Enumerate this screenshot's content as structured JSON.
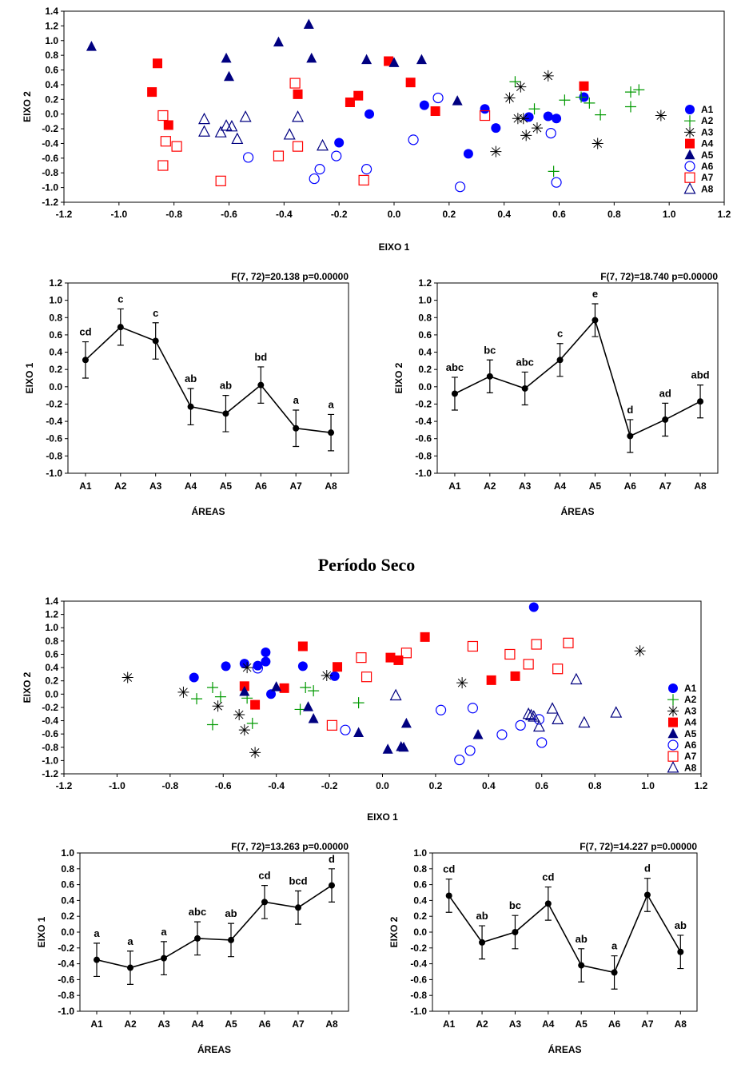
{
  "section_title": "Período Seco",
  "colors": {
    "A1": "#0000ff",
    "A2": "#009900",
    "A3": "#000000",
    "A4": "#ff0000",
    "A5": "#000080",
    "A6": "#0000ff",
    "A7": "#ff0000",
    "A8": "#000080",
    "line": "#000000"
  },
  "markers": {
    "A1": "filled-circle",
    "A2": "plus",
    "A3": "asterisk",
    "A4": "filled-square",
    "A5": "filled-triangle",
    "A6": "open-circle",
    "A7": "open-square",
    "A8": "open-triangle"
  },
  "chart_data": [
    {
      "id": "scatter-top",
      "type": "scatter",
      "xlabel": "EIXO 1",
      "ylabel": "EIXO 2",
      "xlim": [
        -1.2,
        1.2
      ],
      "ylim": [
        -1.2,
        1.4
      ],
      "xticks": [
        "-1.2",
        "-1.0",
        "-0.8",
        "-0.6",
        "-0.4",
        "-0.2",
        "0.0",
        "0.2",
        "0.4",
        "0.6",
        "0.8",
        "1.0",
        "1.2"
      ],
      "yticks": [
        "1.4",
        "1.2",
        "1.0",
        "0.8",
        "0.6",
        "0.4",
        "0.2",
        "0.0",
        "-0.2",
        "-0.4",
        "-0.6",
        "-0.8",
        "-1.0",
        "-1.2"
      ],
      "legend": "right",
      "series": [
        {
          "name": "A1",
          "points": [
            [
              -0.2,
              -0.39
            ],
            [
              -0.09,
              0.0
            ],
            [
              0.11,
              0.12
            ],
            [
              0.27,
              -0.54
            ],
            [
              0.33,
              0.07
            ],
            [
              0.37,
              -0.19
            ],
            [
              0.49,
              -0.04
            ],
            [
              0.56,
              -0.03
            ],
            [
              0.59,
              -0.06
            ],
            [
              0.69,
              0.23
            ]
          ]
        },
        {
          "name": "A2",
          "points": [
            [
              0.44,
              0.44
            ],
            [
              0.51,
              0.07
            ],
            [
              0.58,
              -0.78
            ],
            [
              0.62,
              0.19
            ],
            [
              0.68,
              0.23
            ],
            [
              0.71,
              0.15
            ],
            [
              0.75,
              -0.01
            ],
            [
              0.86,
              0.1
            ],
            [
              0.86,
              0.3
            ],
            [
              0.89,
              0.33
            ]
          ]
        },
        {
          "name": "A3",
          "points": [
            [
              0.37,
              -0.51
            ],
            [
              0.42,
              0.22
            ],
            [
              0.45,
              -0.06
            ],
            [
              0.46,
              0.37
            ],
            [
              0.47,
              -0.06
            ],
            [
              0.48,
              -0.29
            ],
            [
              0.52,
              -0.19
            ],
            [
              0.56,
              0.52
            ],
            [
              0.74,
              -0.4
            ],
            [
              0.97,
              -0.02
            ]
          ]
        },
        {
          "name": "A4",
          "points": [
            [
              -0.88,
              0.3
            ],
            [
              -0.86,
              0.69
            ],
            [
              -0.82,
              -0.15
            ],
            [
              -0.35,
              0.27
            ],
            [
              -0.16,
              0.16
            ],
            [
              -0.13,
              0.25
            ],
            [
              -0.02,
              0.72
            ],
            [
              0.06,
              0.43
            ],
            [
              0.15,
              0.04
            ],
            [
              0.69,
              0.38
            ]
          ]
        },
        {
          "name": "A5",
          "points": [
            [
              -1.1,
              0.92
            ],
            [
              -0.61,
              0.76
            ],
            [
              -0.6,
              0.51
            ],
            [
              -0.42,
              0.98
            ],
            [
              -0.31,
              1.22
            ],
            [
              -0.3,
              0.76
            ],
            [
              -0.1,
              0.74
            ],
            [
              0.0,
              0.7
            ],
            [
              0.1,
              0.74
            ],
            [
              0.23,
              0.18
            ]
          ]
        },
        {
          "name": "A6",
          "points": [
            [
              -0.53,
              -0.59
            ],
            [
              -0.29,
              -0.88
            ],
            [
              -0.27,
              -0.75
            ],
            [
              -0.21,
              -0.57
            ],
            [
              -0.1,
              -0.75
            ],
            [
              0.07,
              -0.35
            ],
            [
              0.16,
              0.22
            ],
            [
              0.24,
              -0.99
            ],
            [
              0.57,
              -0.26
            ],
            [
              0.59,
              -0.93
            ]
          ]
        },
        {
          "name": "A7",
          "points": [
            [
              -0.84,
              -0.02
            ],
            [
              -0.84,
              -0.7
            ],
            [
              -0.83,
              -0.37
            ],
            [
              -0.79,
              -0.44
            ],
            [
              -0.63,
              -0.91
            ],
            [
              -0.42,
              -0.57
            ],
            [
              -0.36,
              0.42
            ],
            [
              -0.35,
              -0.44
            ],
            [
              -0.11,
              -0.9
            ],
            [
              0.33,
              -0.02
            ]
          ]
        },
        {
          "name": "A8",
          "points": [
            [
              -0.69,
              -0.07
            ],
            [
              -0.69,
              -0.24
            ],
            [
              -0.63,
              -0.25
            ],
            [
              -0.61,
              -0.16
            ],
            [
              -0.59,
              -0.17
            ],
            [
              -0.57,
              -0.34
            ],
            [
              -0.54,
              -0.04
            ],
            [
              -0.38,
              -0.28
            ],
            [
              -0.35,
              -0.04
            ],
            [
              -0.26,
              -0.43
            ]
          ]
        }
      ]
    },
    {
      "id": "means-top-eixo1",
      "type": "line",
      "annotation": "F(7, 72)=20.138  p=0.00000",
      "xlabel": "ÁREAS",
      "ylabel": "EIXO 1",
      "categories": [
        "A1",
        "A2",
        "A3",
        "A4",
        "A5",
        "A6",
        "A7",
        "A8"
      ],
      "yticks": [
        "1.2",
        "1.0",
        "0.8",
        "0.6",
        "0.4",
        "0.2",
        "0.0",
        "-0.2",
        "-0.4",
        "-0.6",
        "-0.8",
        "-1.0"
      ],
      "ylim": [
        -1.0,
        1.2
      ],
      "means": [
        0.31,
        0.69,
        0.53,
        -0.23,
        -0.31,
        0.02,
        -0.48,
        -0.53
      ],
      "errors": [
        0.21,
        0.21,
        0.21,
        0.21,
        0.21,
        0.21,
        0.21,
        0.21
      ],
      "groups": [
        "cd",
        "c",
        "c",
        "ab",
        "ab",
        "bd",
        "a",
        "a"
      ]
    },
    {
      "id": "means-top-eixo2",
      "type": "line",
      "annotation": "F(7, 72)=18.740  p=0.00000",
      "xlabel": "ÁREAS",
      "ylabel": "EIXO 2",
      "categories": [
        "A1",
        "A2",
        "A3",
        "A4",
        "A5",
        "A6",
        "A7",
        "A8"
      ],
      "yticks": [
        "1.2",
        "1.0",
        "0.8",
        "0.6",
        "0.4",
        "0.2",
        "0.0",
        "-0.2",
        "-0.4",
        "-0.6",
        "-0.8",
        "-1.0"
      ],
      "ylim": [
        -1.0,
        1.2
      ],
      "means": [
        -0.08,
        0.12,
        -0.02,
        0.31,
        0.77,
        -0.57,
        -0.38,
        -0.17
      ],
      "errors": [
        0.19,
        0.19,
        0.19,
        0.19,
        0.19,
        0.19,
        0.19,
        0.19
      ],
      "groups": [
        "abc",
        "bc",
        "abc",
        "c",
        "e",
        "d",
        "ad",
        "abd"
      ]
    },
    {
      "id": "scatter-bottom",
      "type": "scatter",
      "xlabel": "EIXO 1",
      "ylabel": "EIXO 2",
      "xlim": [
        -1.2,
        1.2
      ],
      "ylim": [
        -1.2,
        1.4
      ],
      "xticks": [
        "-1.2",
        "-1.0",
        "-0.8",
        "-0.6",
        "-0.4",
        "-0.2",
        "0.0",
        "0.2",
        "0.4",
        "0.6",
        "0.8",
        "1.0",
        "1.2"
      ],
      "yticks": [
        "1.4",
        "1.2",
        "1.0",
        "0.8",
        "0.6",
        "0.4",
        "0.2",
        "0.0",
        "-0.2",
        "-0.4",
        "-0.6",
        "-0.8",
        "-1.0",
        "-1.2"
      ],
      "legend": "right",
      "series": [
        {
          "name": "A1",
          "points": [
            [
              -0.71,
              0.25
            ],
            [
              -0.59,
              0.42
            ],
            [
              -0.52,
              0.46
            ],
            [
              -0.47,
              0.43
            ],
            [
              -0.44,
              0.63
            ],
            [
              -0.44,
              0.49
            ],
            [
              -0.42,
              0.0
            ],
            [
              -0.3,
              0.42
            ],
            [
              -0.18,
              0.27
            ],
            [
              0.57,
              1.31
            ]
          ]
        },
        {
          "name": "A2",
          "points": [
            [
              -0.7,
              -0.07
            ],
            [
              -0.64,
              0.1
            ],
            [
              -0.61,
              -0.04
            ],
            [
              -0.64,
              -0.46
            ],
            [
              -0.51,
              -0.06
            ],
            [
              -0.49,
              -0.44
            ],
            [
              -0.31,
              -0.23
            ],
            [
              -0.26,
              0.05
            ],
            [
              -0.09,
              -0.13
            ],
            [
              -0.29,
              0.1
            ]
          ]
        },
        {
          "name": "A3",
          "points": [
            [
              -0.96,
              0.25
            ],
            [
              -0.75,
              0.03
            ],
            [
              -0.62,
              -0.18
            ],
            [
              -0.54,
              -0.31
            ],
            [
              -0.52,
              -0.54
            ],
            [
              -0.48,
              -0.88
            ],
            [
              -0.21,
              0.28
            ],
            [
              -0.51,
              0.4
            ],
            [
              0.3,
              0.17
            ],
            [
              0.97,
              0.65
            ]
          ]
        },
        {
          "name": "A4",
          "points": [
            [
              -0.52,
              0.12
            ],
            [
              -0.48,
              -0.16
            ],
            [
              -0.37,
              0.09
            ],
            [
              -0.3,
              0.72
            ],
            [
              -0.17,
              0.41
            ],
            [
              0.03,
              0.55
            ],
            [
              0.06,
              0.51
            ],
            [
              0.16,
              0.86
            ],
            [
              0.41,
              0.21
            ],
            [
              0.5,
              0.27
            ]
          ]
        },
        {
          "name": "A5",
          "points": [
            [
              -0.52,
              0.04
            ],
            [
              -0.4,
              0.11
            ],
            [
              -0.28,
              -0.19
            ],
            [
              -0.26,
              -0.37
            ],
            [
              -0.09,
              -0.58
            ],
            [
              0.02,
              -0.83
            ],
            [
              0.07,
              -0.79
            ],
            [
              0.08,
              -0.8
            ],
            [
              0.09,
              -0.44
            ],
            [
              0.36,
              -0.61
            ]
          ]
        },
        {
          "name": "A6",
          "points": [
            [
              -0.47,
              0.39
            ],
            [
              -0.14,
              -0.54
            ],
            [
              0.22,
              -0.24
            ],
            [
              0.29,
              -0.99
            ],
            [
              0.33,
              -0.85
            ],
            [
              0.34,
              -0.21
            ],
            [
              0.45,
              -0.61
            ],
            [
              0.52,
              -0.47
            ],
            [
              0.59,
              -0.38
            ],
            [
              0.6,
              -0.73
            ]
          ]
        },
        {
          "name": "A7",
          "points": [
            [
              -0.19,
              -0.47
            ],
            [
              -0.08,
              0.55
            ],
            [
              -0.06,
              0.26
            ],
            [
              0.09,
              0.62
            ],
            [
              0.34,
              0.72
            ],
            [
              0.48,
              0.6
            ],
            [
              0.55,
              0.45
            ],
            [
              0.58,
              0.75
            ],
            [
              0.66,
              0.38
            ],
            [
              0.7,
              0.77
            ]
          ]
        },
        {
          "name": "A8",
          "points": [
            [
              0.05,
              -0.02
            ],
            [
              0.55,
              -0.3
            ],
            [
              0.56,
              -0.32
            ],
            [
              0.59,
              -0.49
            ],
            [
              0.64,
              -0.22
            ],
            [
              0.66,
              -0.38
            ],
            [
              0.73,
              0.22
            ],
            [
              0.76,
              -0.43
            ],
            [
              0.88,
              -0.28
            ],
            [
              0.57,
              -0.34
            ]
          ]
        }
      ]
    },
    {
      "id": "means-bottom-eixo1",
      "type": "line",
      "annotation": "F(7, 72)=13.263  p=0.00000",
      "xlabel": "ÁREAS",
      "ylabel": "EIXO 1",
      "categories": [
        "A1",
        "A2",
        "A3",
        "A4",
        "A5",
        "A6",
        "A7",
        "A8"
      ],
      "yticks": [
        "1.0",
        "0.8",
        "0.6",
        "0.4",
        "0.2",
        "0.0",
        "-0.2",
        "-0.4",
        "-0.6",
        "-0.8",
        "-1.0"
      ],
      "ylim": [
        -1.0,
        1.0
      ],
      "means": [
        -0.35,
        -0.45,
        -0.33,
        -0.08,
        -0.1,
        0.38,
        0.31,
        0.59
      ],
      "errors": [
        0.21,
        0.21,
        0.21,
        0.21,
        0.21,
        0.21,
        0.21,
        0.21
      ],
      "groups": [
        "a",
        "a",
        "a",
        "abc",
        "ab",
        "cd",
        "bcd",
        "d"
      ]
    },
    {
      "id": "means-bottom-eixo2",
      "type": "line",
      "annotation": "F(7, 72)=14.227 p=0.00000",
      "xlabel": "ÁREAS",
      "ylabel": "EIXO 2",
      "categories": [
        "A1",
        "A2",
        "A3",
        "A4",
        "A5",
        "A6",
        "A7",
        "A8"
      ],
      "yticks": [
        "1.0",
        "0.8",
        "0.6",
        "0.4",
        "0.2",
        "0.0",
        "-0.2",
        "-0.4",
        "-0.6",
        "-0.8",
        "-1.0"
      ],
      "ylim": [
        -1.0,
        1.0
      ],
      "means": [
        0.46,
        -0.13,
        0.0,
        0.36,
        -0.42,
        -0.51,
        0.47,
        -0.25
      ],
      "errors": [
        0.21,
        0.21,
        0.21,
        0.21,
        0.21,
        0.21,
        0.21,
        0.21
      ],
      "groups": [
        "cd",
        "ab",
        "bc",
        "cd",
        "ab",
        "a",
        "d",
        "ab"
      ]
    }
  ]
}
